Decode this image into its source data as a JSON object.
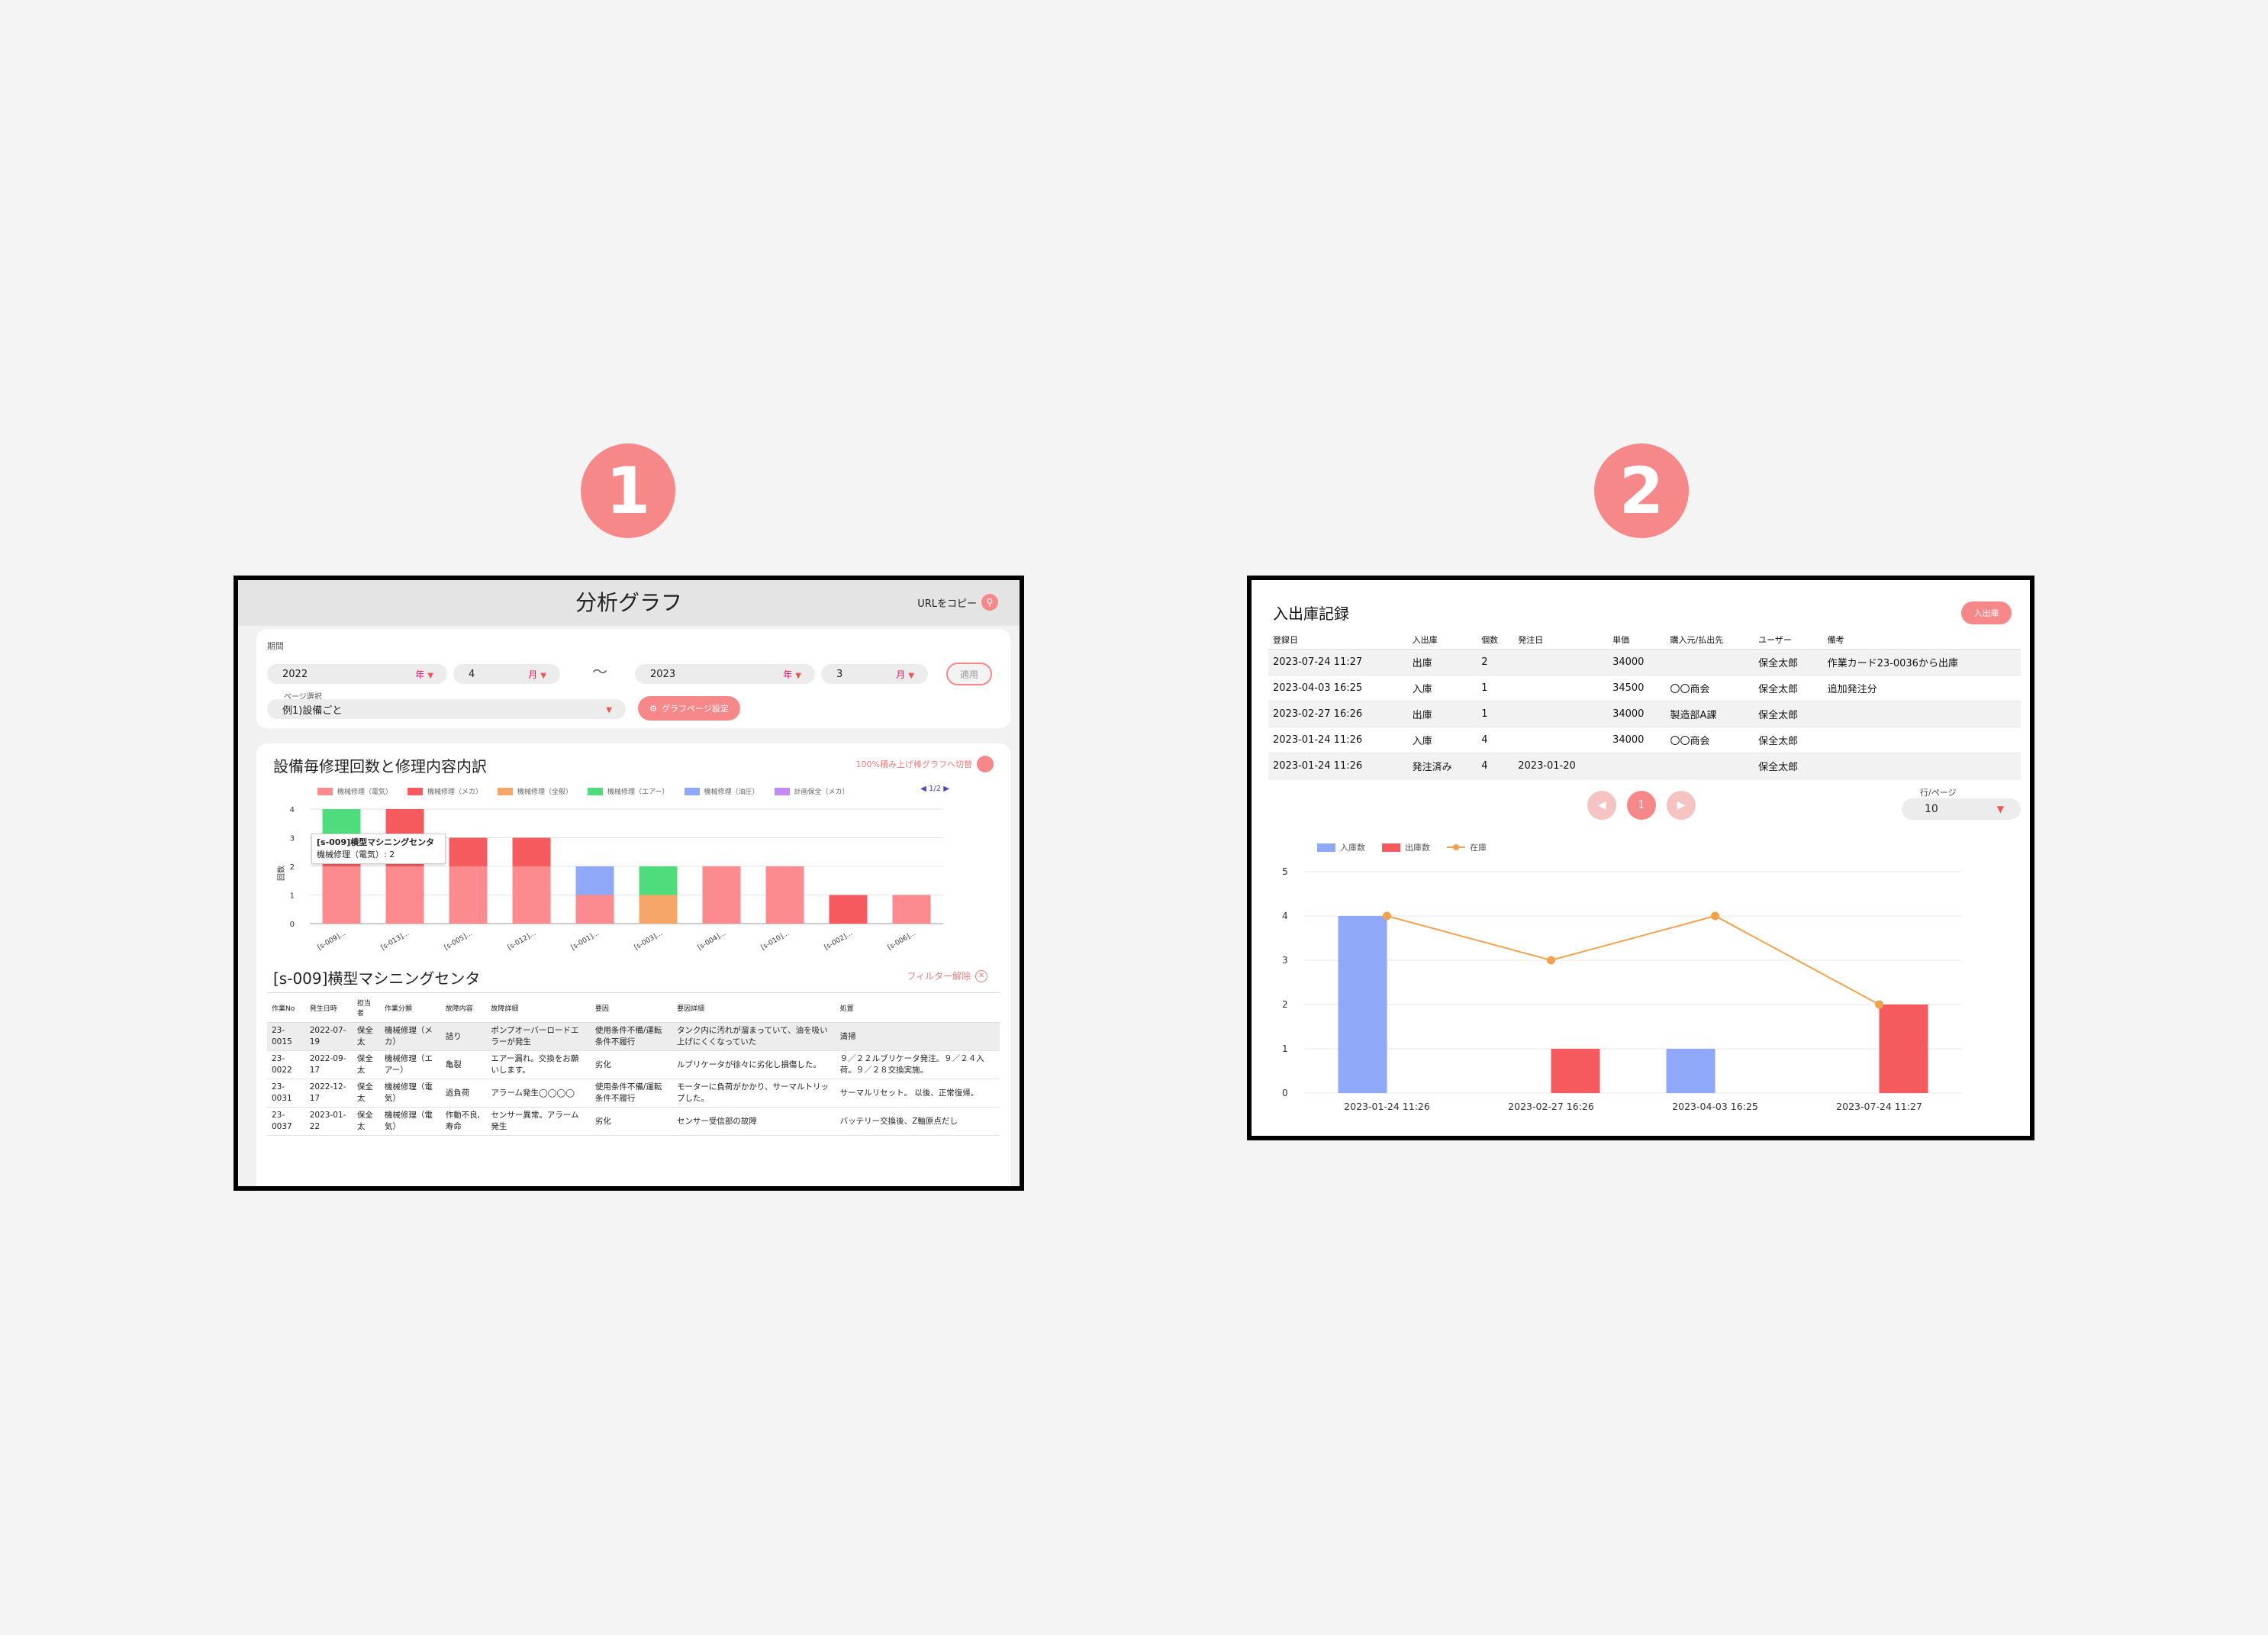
{
  "badges": {
    "first": "1",
    "second": "2"
  },
  "colors": {
    "accent": "#f7888a",
    "bar_in": "#8fa8f7",
    "bar_out": "#f55a5e",
    "stock_line": "#f0a24f"
  },
  "panel1": {
    "title": "分析グラフ",
    "url_copy": "URLをコピー",
    "period_label": "期間",
    "start": {
      "year": "2022",
      "year_suffix": "年",
      "month": "4",
      "month_suffix": "月"
    },
    "range_sep": "〜",
    "end": {
      "year": "2023",
      "year_suffix": "年",
      "month": "3",
      "month_suffix": "月"
    },
    "apply_label": "適用",
    "page_select_label": "ページ選択",
    "page_select_value": "例1)設備ごと",
    "page_setting_label": "グラフページ設定",
    "card_title": "設備毎修理回数と修理内容内訳",
    "switch_label": "100%積み上げ棒グラフへ切替",
    "legend": [
      {
        "label": "機械修理（電気）",
        "color": "#fb8b8e"
      },
      {
        "label": "機械修理（メカ）",
        "color": "#f55a5e"
      },
      {
        "label": "機械修理（全般）",
        "color": "#f7a66a"
      },
      {
        "label": "機械修理（エアー）",
        "color": "#4fdc7c"
      },
      {
        "label": "機械修理（油圧）",
        "color": "#8fa8f7"
      },
      {
        "label": "計画保全（メカ）",
        "color": "#c48cf2"
      }
    ],
    "legend_page": "1/2",
    "tooltip": {
      "title": "[s-009]横型マシニングセンタ",
      "line": "機械修理（電気）: 2"
    },
    "detail_title": "[s-009]横型マシニングセンタ",
    "filter_clear": "フィルター解除",
    "table": {
      "headers": [
        "作業No",
        "発生日時",
        "担当者",
        "作業分類",
        "故障内容",
        "故障詳細",
        "要因",
        "要因詳細",
        "処置"
      ],
      "rows": [
        [
          "23-0015",
          "2022-07-19",
          "保全太",
          "機械修理（メカ）",
          "詰り",
          "ポンプオーバーロードエラーが発生",
          "使用条件不備/運転条件不履行",
          "タンク内に汚れが溜まっていて、油を吸い上げにくくなっていた",
          "清掃"
        ],
        [
          "23-0022",
          "2022-09-17",
          "保全太",
          "機械修理（エアー）",
          "亀裂",
          "エアー漏れ。交換をお願いします。",
          "劣化",
          "ルブリケータが徐々に劣化し損傷した。",
          "９／２２ルブリケータ発注。９／２４入荷。９／２８交換実施。"
        ],
        [
          "23-0031",
          "2022-12-17",
          "保全太",
          "機械修理（電気）",
          "過負荷",
          "アラーム発生◯◯◯◯",
          "使用条件不備/運転条件不履行",
          "モーターに負荷がかかり、サーマルトリップした。",
          "サーマルリセット。 以後、正常復帰。"
        ],
        [
          "23-0037",
          "2023-01-22",
          "保全太",
          "機械修理（電気）",
          "作動不良,寿命",
          "センサー異常。アラーム発生",
          "劣化",
          "センサー受信部の故障",
          "バッテリー交換後、Z軸原点だし"
        ]
      ]
    },
    "chart_data": {
      "type": "bar",
      "stacked": true,
      "categories": [
        "[s-009]...",
        "[s-013]...",
        "[s-005]...",
        "[s-012]...",
        "[s-001]...",
        "[s-003]...",
        "[s-004]...",
        "[s-010]...",
        "[s-002]...",
        "[s-006]..."
      ],
      "series": [
        {
          "name": "機械修理（電気）",
          "values": [
            2,
            2,
            2,
            2,
            1,
            0,
            2,
            2,
            0,
            1
          ]
        },
        {
          "name": "機械修理（メカ）",
          "values": [
            1,
            2,
            1,
            1,
            0,
            0,
            0,
            0,
            1,
            0
          ]
        },
        {
          "name": "機械修理（全般）",
          "values": [
            0,
            0,
            0,
            0,
            0,
            1,
            0,
            0,
            0,
            0
          ]
        },
        {
          "name": "機械修理（エアー）",
          "values": [
            1,
            0,
            0,
            0,
            0,
            1,
            0,
            0,
            0,
            0
          ]
        },
        {
          "name": "機械修理（油圧）",
          "values": [
            0,
            0,
            0,
            0,
            1,
            0,
            0,
            0,
            0,
            0
          ]
        },
        {
          "name": "計画保全（メカ）",
          "values": [
            0,
            0,
            0,
            0,
            0,
            0,
            0,
            0,
            0,
            0
          ]
        }
      ],
      "ylabel": "回数",
      "ylim": [
        0,
        4
      ],
      "yticks": [
        0,
        1,
        2,
        3,
        4
      ],
      "grid": true,
      "legend_position": "top"
    }
  },
  "panel2": {
    "title": "入出庫記録",
    "io_button": "入出庫",
    "table": {
      "headers": [
        "登録日",
        "入出庫",
        "個数",
        "発注日",
        "単価",
        "購入元/払出先",
        "ユーザー",
        "備考"
      ],
      "rows": [
        [
          "2023-07-24 11:27",
          "出庫",
          "2",
          "",
          "34000",
          "",
          "保全太郎",
          "作業カード23-0036から出庫"
        ],
        [
          "2023-04-03 16:25",
          "入庫",
          "1",
          "",
          "34500",
          "〇〇商会",
          "保全太郎",
          "追加発注分"
        ],
        [
          "2023-02-27 16:26",
          "出庫",
          "1",
          "",
          "34000",
          "製造部A課",
          "保全太郎",
          ""
        ],
        [
          "2023-01-24 11:26",
          "入庫",
          "4",
          "",
          "34000",
          "〇〇商会",
          "保全太郎",
          ""
        ],
        [
          "2023-01-24 11:26",
          "発注済み",
          "4",
          "2023-01-20",
          "",
          "",
          "保全太郎",
          ""
        ]
      ]
    },
    "pager": {
      "prev": "◀",
      "current": "1",
      "next": "▶"
    },
    "rows_per_page_label": "行/ページ",
    "rows_per_page_value": "10",
    "legend": {
      "in": "入庫数",
      "out": "出庫数",
      "stock": "在庫"
    },
    "chart_data": {
      "type": "bar",
      "categories": [
        "2023-01-24 11:26",
        "2023-02-27 16:26",
        "2023-04-03 16:25",
        "2023-07-24 11:27"
      ],
      "series": [
        {
          "name": "入庫数",
          "type": "bar",
          "values": [
            4,
            0,
            1,
            0
          ]
        },
        {
          "name": "出庫数",
          "type": "bar",
          "values": [
            0,
            1,
            0,
            2
          ]
        },
        {
          "name": "在庫",
          "type": "line",
          "values": [
            4,
            3,
            4,
            2
          ]
        }
      ],
      "ylim": [
        0,
        5
      ],
      "yticks": [
        0,
        1,
        2,
        3,
        4,
        5
      ],
      "grid": true,
      "legend_position": "top-left"
    }
  }
}
